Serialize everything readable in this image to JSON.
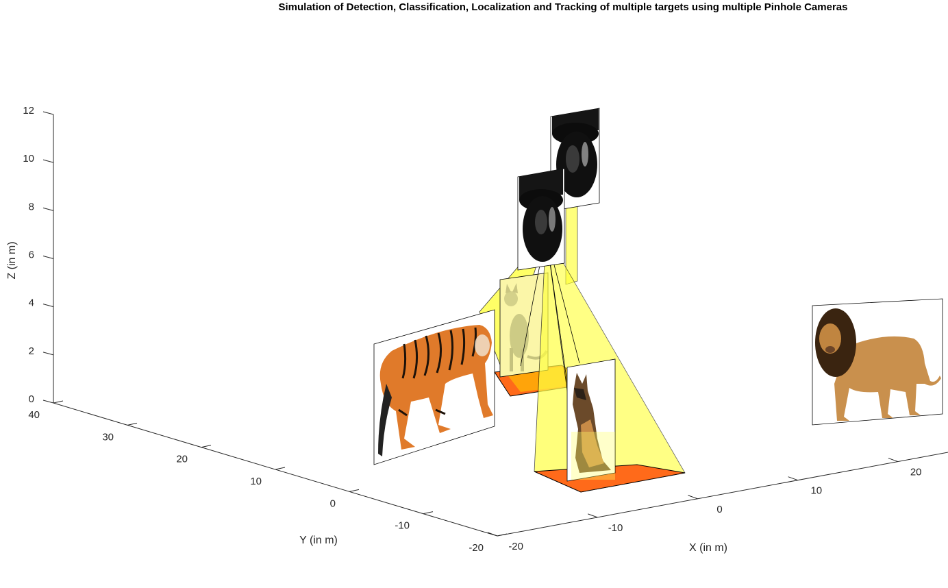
{
  "chart_data": {
    "type": "3d-scene",
    "title": "Simulation of Detection, Classification, Localization and Tracking of multiple targets using multiple Pinhole Cameras",
    "xlabel": "X (in m)",
    "ylabel": "Y (in m)",
    "zlabel": "Z (in m)",
    "x_ticks": [
      "-20",
      "-10",
      "0",
      "10",
      "20"
    ],
    "y_ticks": [
      "-20",
      "-10",
      "0",
      "10",
      "20",
      "30",
      "40"
    ],
    "z_ticks": [
      "0",
      "2",
      "4",
      "6",
      "8",
      "10",
      "12"
    ],
    "xlim": [
      -20,
      25
    ],
    "ylim": [
      -20,
      40
    ],
    "zlim": [
      0,
      12
    ],
    "grid": false,
    "objects": [
      {
        "kind": "camera",
        "name": "camera-1",
        "icon": "dome-camera-icon"
      },
      {
        "kind": "camera",
        "name": "camera-2",
        "icon": "dome-camera-icon"
      },
      {
        "kind": "target",
        "name": "tiger",
        "icon": "tiger-icon"
      },
      {
        "kind": "target",
        "name": "cat",
        "icon": "cat-icon"
      },
      {
        "kind": "target",
        "name": "dog",
        "icon": "dog-icon"
      },
      {
        "kind": "target",
        "name": "lion",
        "icon": "lion-icon"
      }
    ],
    "colors": {
      "frustum": "#ffff33",
      "footprint": "#ff6a1a",
      "axis": "#262626"
    }
  }
}
